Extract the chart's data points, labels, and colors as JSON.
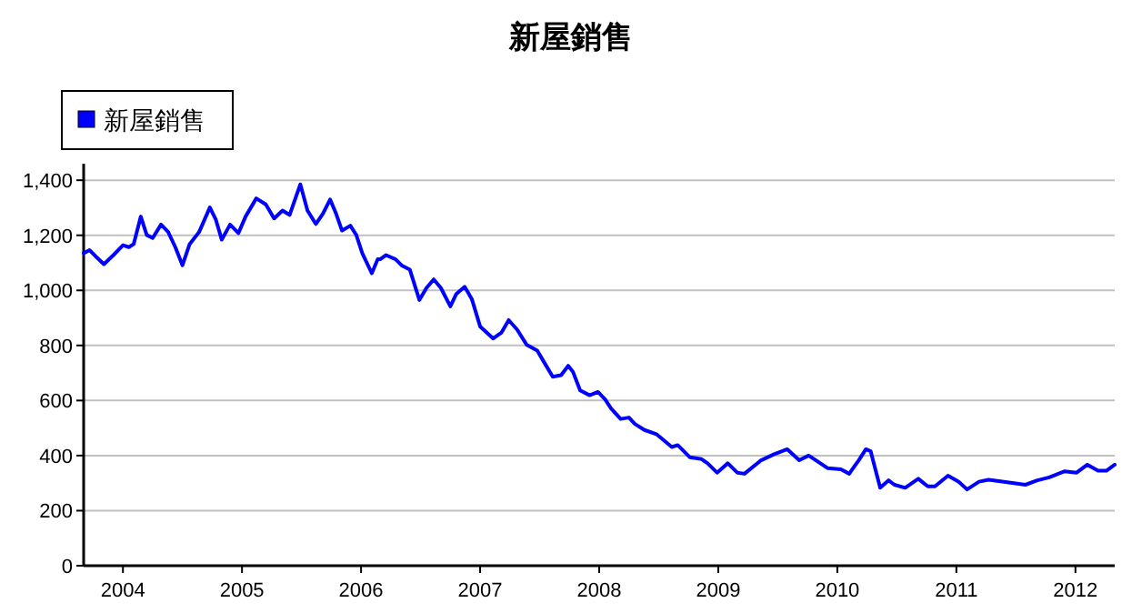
{
  "chart_data": {
    "type": "line",
    "title": "新屋銷售",
    "x": [
      2003.67,
      2003.72,
      2003.77,
      2003.84,
      2003.92,
      2004.0,
      2004.05,
      2004.09,
      2004.15,
      2004.2,
      2004.25,
      2004.32,
      2004.38,
      2004.44,
      2004.5,
      2004.56,
      2004.64,
      2004.73,
      2004.78,
      2004.83,
      2004.9,
      2004.97,
      2005.03,
      2005.12,
      2005.2,
      2005.27,
      2005.34,
      2005.4,
      2005.49,
      2005.55,
      2005.62,
      2005.68,
      2005.74,
      2005.79,
      2005.84,
      2005.91,
      2005.96,
      2006.01,
      2006.09,
      2006.14,
      2006.16,
      2006.21,
      2006.29,
      2006.34,
      2006.41,
      2006.49,
      2006.55,
      2006.61,
      2006.67,
      2006.75,
      2006.8,
      2006.87,
      2006.93,
      2007.0,
      2007.11,
      2007.18,
      2007.24,
      2007.31,
      2007.39,
      2007.48,
      2007.54,
      2007.61,
      2007.68,
      2007.74,
      2007.78,
      2007.84,
      2007.92,
      2007.99,
      2008.05,
      2008.1,
      2008.18,
      2008.25,
      2008.3,
      2008.38,
      2008.48,
      2008.56,
      2008.61,
      2008.66,
      2008.76,
      2008.86,
      2008.91,
      2008.99,
      2009.08,
      2009.16,
      2009.22,
      2009.36,
      2009.47,
      2009.58,
      2009.68,
      2009.76,
      2009.82,
      2009.92,
      2010.03,
      2010.1,
      2010.18,
      2010.24,
      2010.28,
      2010.36,
      2010.43,
      2010.48,
      2010.57,
      2010.68,
      2010.76,
      2010.82,
      2010.93,
      2011.02,
      2011.09,
      2011.19,
      2011.27,
      2011.4,
      2011.58,
      2011.68,
      2011.78,
      2011.91,
      2012.01,
      2012.1,
      2012.19,
      2012.26,
      2012.33
    ],
    "series": [
      {
        "name": "新屋銷售",
        "color": "#0000ff",
        "values": [
          1135,
          1146,
          1124,
          1095,
          1128,
          1164,
          1157,
          1168,
          1268,
          1201,
          1190,
          1239,
          1212,
          1157,
          1091,
          1168,
          1212,
          1301,
          1257,
          1184,
          1239,
          1208,
          1268,
          1334,
          1312,
          1261,
          1290,
          1274,
          1385,
          1290,
          1241,
          1279,
          1330,
          1279,
          1217,
          1235,
          1201,
          1135,
          1062,
          1113,
          1113,
          1128,
          1113,
          1091,
          1075,
          965,
          1009,
          1040,
          1009,
          942,
          987,
          1013,
          969,
          869,
          825,
          847,
          892,
          858,
          803,
          781,
          737,
          686,
          692,
          726,
          704,
          637,
          619,
          631,
          604,
          571,
          533,
          538,
          515,
          493,
          478,
          449,
          431,
          438,
          394,
          387,
          372,
          338,
          372,
          338,
          334,
          383,
          405,
          423,
          383,
          400,
          383,
          354,
          350,
          334,
          383,
          423,
          416,
          283,
          310,
          294,
          283,
          316,
          288,
          288,
          327,
          305,
          277,
          305,
          312,
          305,
          294,
          310,
          321,
          343,
          338,
          367,
          345,
          345,
          367
        ]
      }
    ],
    "xlim": [
      2003.67,
      2012.33
    ],
    "xticks": [
      2004,
      2005,
      2006,
      2007,
      2008,
      2009,
      2010,
      2011,
      2012
    ],
    "ylim": [
      0,
      1460
    ],
    "yticks": [
      0,
      200,
      400,
      600,
      800,
      {
        "value": 1000,
        "label": "1,000"
      },
      {
        "value": 1200,
        "label": "1,200"
      },
      {
        "value": 1400,
        "label": "1,400"
      }
    ],
    "grid": "y",
    "legend": "top left"
  }
}
